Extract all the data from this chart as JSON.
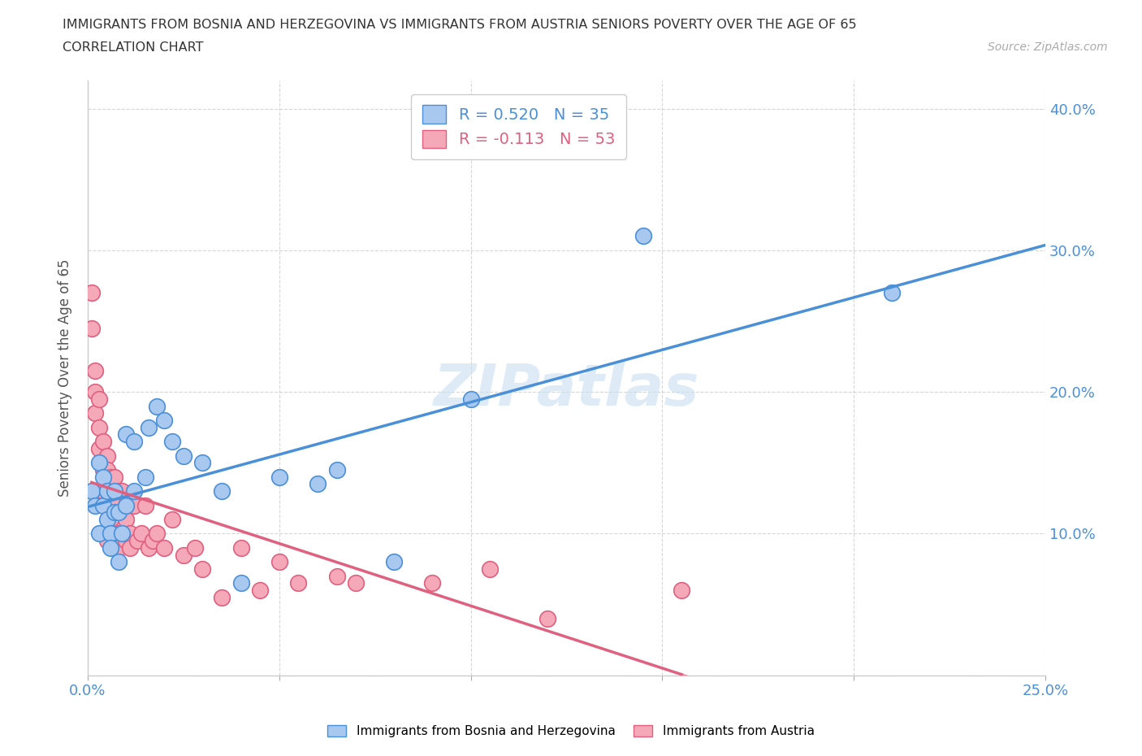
{
  "title_line1": "IMMIGRANTS FROM BOSNIA AND HERZEGOVINA VS IMMIGRANTS FROM AUSTRIA SENIORS POVERTY OVER THE AGE OF 65",
  "title_line2": "CORRELATION CHART",
  "source_text": "Source: ZipAtlas.com",
  "ylabel": "Seniors Poverty Over the Age of 65",
  "xlim": [
    0.0,
    0.25
  ],
  "ylim": [
    0.0,
    0.42
  ],
  "x_ticks": [
    0.0,
    0.05,
    0.1,
    0.15,
    0.2,
    0.25
  ],
  "y_ticks": [
    0.0,
    0.1,
    0.2,
    0.3,
    0.4
  ],
  "bosnia_R": 0.52,
  "bosnia_N": 35,
  "austria_R": -0.113,
  "austria_N": 53,
  "bosnia_color": "#a8c8f0",
  "austria_color": "#f4a8b8",
  "bosnia_line_color": "#4a90d9",
  "austria_line_color": "#e06080",
  "watermark_color": "#c8dff0",
  "bosnia_x": [
    0.001,
    0.002,
    0.003,
    0.003,
    0.004,
    0.004,
    0.005,
    0.005,
    0.006,
    0.006,
    0.007,
    0.007,
    0.008,
    0.008,
    0.009,
    0.01,
    0.01,
    0.012,
    0.012,
    0.015,
    0.016,
    0.018,
    0.02,
    0.022,
    0.025,
    0.03,
    0.035,
    0.04,
    0.05,
    0.06,
    0.065,
    0.08,
    0.1,
    0.145,
    0.21
  ],
  "bosnia_y": [
    0.13,
    0.12,
    0.15,
    0.1,
    0.14,
    0.12,
    0.11,
    0.13,
    0.1,
    0.09,
    0.115,
    0.13,
    0.115,
    0.08,
    0.1,
    0.17,
    0.12,
    0.165,
    0.13,
    0.14,
    0.175,
    0.19,
    0.18,
    0.165,
    0.155,
    0.15,
    0.13,
    0.065,
    0.14,
    0.135,
    0.145,
    0.08,
    0.195,
    0.31,
    0.27
  ],
  "austria_x": [
    0.001,
    0.001,
    0.002,
    0.002,
    0.002,
    0.003,
    0.003,
    0.003,
    0.004,
    0.004,
    0.004,
    0.005,
    0.005,
    0.005,
    0.006,
    0.006,
    0.006,
    0.007,
    0.007,
    0.007,
    0.008,
    0.008,
    0.008,
    0.009,
    0.009,
    0.01,
    0.01,
    0.01,
    0.011,
    0.011,
    0.012,
    0.013,
    0.014,
    0.015,
    0.016,
    0.017,
    0.018,
    0.02,
    0.022,
    0.025,
    0.028,
    0.03,
    0.035,
    0.04,
    0.045,
    0.05,
    0.055,
    0.065,
    0.07,
    0.09,
    0.105,
    0.12,
    0.155
  ],
  "austria_y": [
    0.27,
    0.245,
    0.215,
    0.2,
    0.185,
    0.195,
    0.175,
    0.16,
    0.165,
    0.145,
    0.13,
    0.155,
    0.145,
    0.095,
    0.14,
    0.125,
    0.11,
    0.14,
    0.12,
    0.1,
    0.13,
    0.1,
    0.09,
    0.13,
    0.1,
    0.12,
    0.11,
    0.095,
    0.1,
    0.09,
    0.12,
    0.095,
    0.1,
    0.12,
    0.09,
    0.095,
    0.1,
    0.09,
    0.11,
    0.085,
    0.09,
    0.075,
    0.055,
    0.09,
    0.06,
    0.08,
    0.065,
    0.07,
    0.065,
    0.065,
    0.075,
    0.04,
    0.06
  ]
}
